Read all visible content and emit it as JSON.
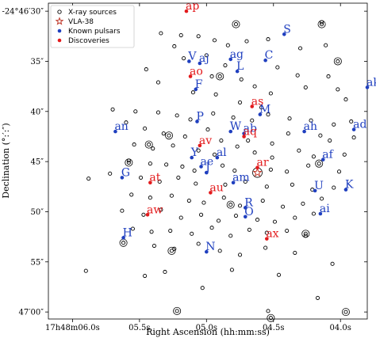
{
  "chart_data": {
    "type": "scatter",
    "xlabel": "Right Ascension (hh:mm:ss)",
    "ylabel": "Declination (°:′:″)",
    "x_ticks": [
      {
        "label": "17h48m06.0s",
        "value": 6.0
      },
      {
        "label": "05.5s",
        "value": 5.5
      },
      {
        "label": "05.0s",
        "value": 5.0
      },
      {
        "label": "04.5s",
        "value": 4.5
      },
      {
        "label": "04.0s",
        "value": 4.0
      }
    ],
    "y_ticks": [
      {
        "label": "-24°46′30″",
        "value": 30
      },
      {
        "label": "35″",
        "value": 35
      },
      {
        "label": "40″",
        "value": 40
      },
      {
        "label": "45″",
        "value": 45
      },
      {
        "label": "50″",
        "value": 50
      },
      {
        "label": "55″",
        "value": 55
      },
      {
        "label": "47′00″",
        "value": 60
      }
    ],
    "xlim": [
      6.18,
      3.8
    ],
    "ylim": [
      29.2,
      60.7
    ],
    "legend": {
      "position": "top-left",
      "entries": [
        {
          "label": "X-ray sources",
          "marker": "open-circle",
          "color": "#000000"
        },
        {
          "label": "VLA-38",
          "marker": "star",
          "color": "#c0392b"
        },
        {
          "label": "Known pulsars",
          "marker": "dot",
          "color": "#1f3fbf"
        },
        {
          "label": "Discoveries",
          "marker": "dot",
          "color": "#e31a1c"
        }
      ]
    },
    "colors": {
      "pulsar": "#1f3fbf",
      "discovery": "#e31a1c",
      "xray": "#000000",
      "vla": "#c0392b"
    },
    "vla38": {
      "x": 4.62,
      "y": 46.1
    },
    "known_pulsars": [
      {
        "name": "S",
        "x": 4.42,
        "y": 32.3
      },
      {
        "name": "V",
        "x": 5.13,
        "y": 35.0
      },
      {
        "name": "aj",
        "x": 5.05,
        "y": 35.2
      },
      {
        "name": "ag",
        "x": 4.82,
        "y": 34.8
      },
      {
        "name": "C",
        "x": 4.56,
        "y": 34.9
      },
      {
        "name": "L",
        "x": 4.77,
        "y": 36.0
      },
      {
        "name": "ak",
        "x": 3.8,
        "y": 37.6
      },
      {
        "name": "F",
        "x": 5.08,
        "y": 37.8
      },
      {
        "name": "M",
        "x": 4.6,
        "y": 40.3
      },
      {
        "name": "P",
        "x": 5.07,
        "y": 41.0
      },
      {
        "name": "W",
        "x": 4.82,
        "y": 42.0
      },
      {
        "name": "ab",
        "x": 4.72,
        "y": 42.2
      },
      {
        "name": "an",
        "x": 5.68,
        "y": 42.0
      },
      {
        "name": "ah",
        "x": 4.27,
        "y": 42.0
      },
      {
        "name": "ad",
        "x": 3.9,
        "y": 41.8
      },
      {
        "name": "Y",
        "x": 5.11,
        "y": 44.6
      },
      {
        "name": "al",
        "x": 4.92,
        "y": 44.6
      },
      {
        "name": "af",
        "x": 4.13,
        "y": 44.8
      },
      {
        "name": "ae",
        "x": 5.04,
        "y": 45.5
      },
      {
        "name": "J",
        "x": 5.0,
        "y": 46.1
      },
      {
        "name": "am",
        "x": 4.8,
        "y": 47.1
      },
      {
        "name": "G",
        "x": 5.63,
        "y": 46.6
      },
      {
        "name": "U",
        "x": 4.19,
        "y": 47.9
      },
      {
        "name": "K",
        "x": 3.96,
        "y": 47.8
      },
      {
        "name": "R",
        "x": 4.71,
        "y": 49.6
      },
      {
        "name": "O",
        "x": 4.71,
        "y": 50.5
      },
      {
        "name": "ai",
        "x": 4.15,
        "y": 50.2
      },
      {
        "name": "H",
        "x": 5.62,
        "y": 52.6
      },
      {
        "name": "N",
        "x": 5.0,
        "y": 54.0
      }
    ],
    "discoveries": [
      {
        "name": "ap",
        "x": 5.15,
        "y": 30.0
      },
      {
        "name": "ao",
        "x": 5.12,
        "y": 36.5
      },
      {
        "name": "as",
        "x": 4.66,
        "y": 39.5
      },
      {
        "name": "aq",
        "x": 4.72,
        "y": 42.5
      },
      {
        "name": "av",
        "x": 5.05,
        "y": 43.4
      },
      {
        "name": "ar",
        "x": 4.62,
        "y": 45.6
      },
      {
        "name": "at",
        "x": 5.42,
        "y": 47.1
      },
      {
        "name": "au",
        "x": 4.97,
        "y": 48.1
      },
      {
        "name": "aw",
        "x": 5.44,
        "y": 50.3
      },
      {
        "name": "ax",
        "x": 4.55,
        "y": 52.7
      }
    ],
    "xray_sources": [
      {
        "x": 5.6,
        "y": 30.5
      },
      {
        "x": 5.34,
        "y": 32.2
      },
      {
        "x": 5.24,
        "y": 33.5
      },
      {
        "x": 5.19,
        "y": 32.4
      },
      {
        "x": 5.06,
        "y": 32.5
      },
      {
        "x": 4.94,
        "y": 32.9
      },
      {
        "x": 4.84,
        "y": 33.4
      },
      {
        "x": 4.7,
        "y": 33.0
      },
      {
        "x": 4.54,
        "y": 32.8
      },
      {
        "x": 4.3,
        "y": 33.7
      },
      {
        "x": 4.14,
        "y": 31.1
      },
      {
        "x": 4.11,
        "y": 33.4
      },
      {
        "x": 4.47,
        "y": 35.6
      },
      {
        "x": 4.32,
        "y": 36.4
      },
      {
        "x": 4.09,
        "y": 36.5
      },
      {
        "x": 4.96,
        "y": 36.5
      },
      {
        "x": 5.45,
        "y": 35.8
      },
      {
        "x": 5.36,
        "y": 37.1
      },
      {
        "x": 5.17,
        "y": 34.7
      },
      {
        "x": 5.0,
        "y": 34.4
      },
      {
        "x": 4.86,
        "y": 35.4
      },
      {
        "x": 4.74,
        "y": 36.8
      },
      {
        "x": 4.64,
        "y": 37.5
      },
      {
        "x": 4.52,
        "y": 38.2
      },
      {
        "x": 4.26,
        "y": 37.6
      },
      {
        "x": 4.02,
        "y": 37.8
      },
      {
        "x": 3.96,
        "y": 38.8
      },
      {
        "x": 5.1,
        "y": 38.1
      },
      {
        "x": 4.93,
        "y": 38.3
      },
      {
        "x": 4.75,
        "y": 39.1
      },
      {
        "x": 4.59,
        "y": 39.6
      },
      {
        "x": 5.7,
        "y": 39.8
      },
      {
        "x": 5.53,
        "y": 40.0
      },
      {
        "x": 5.36,
        "y": 40.1
      },
      {
        "x": 5.22,
        "y": 40.4
      },
      {
        "x": 5.12,
        "y": 40.8
      },
      {
        "x": 4.95,
        "y": 40.2
      },
      {
        "x": 4.8,
        "y": 40.6
      },
      {
        "x": 4.66,
        "y": 40.9
      },
      {
        "x": 4.54,
        "y": 40.3
      },
      {
        "x": 4.38,
        "y": 40.7
      },
      {
        "x": 4.22,
        "y": 40.9
      },
      {
        "x": 4.05,
        "y": 41.3
      },
      {
        "x": 3.92,
        "y": 41.0
      },
      {
        "x": 5.6,
        "y": 41.1
      },
      {
        "x": 5.46,
        "y": 41.7
      },
      {
        "x": 5.32,
        "y": 42.2
      },
      {
        "x": 5.16,
        "y": 42.5
      },
      {
        "x": 4.99,
        "y": 41.8
      },
      {
        "x": 4.89,
        "y": 42.9
      },
      {
        "x": 4.69,
        "y": 42.9
      },
      {
        "x": 4.51,
        "y": 43.2
      },
      {
        "x": 4.39,
        "y": 42.2
      },
      {
        "x": 4.15,
        "y": 42.4
      },
      {
        "x": 4.08,
        "y": 42.9
      },
      {
        "x": 3.9,
        "y": 42.6
      },
      {
        "x": 5.54,
        "y": 43.3
      },
      {
        "x": 5.4,
        "y": 43.7
      },
      {
        "x": 5.25,
        "y": 43.4
      },
      {
        "x": 5.06,
        "y": 43.9
      },
      {
        "x": 4.94,
        "y": 44.3
      },
      {
        "x": 4.77,
        "y": 43.5
      },
      {
        "x": 4.64,
        "y": 44.1
      },
      {
        "x": 4.51,
        "y": 44.6
      },
      {
        "x": 4.31,
        "y": 43.9
      },
      {
        "x": 4.2,
        "y": 44.5
      },
      {
        "x": 3.97,
        "y": 44.3
      },
      {
        "x": 5.58,
        "y": 44.9
      },
      {
        "x": 5.42,
        "y": 45.2
      },
      {
        "x": 5.3,
        "y": 45.3
      },
      {
        "x": 5.18,
        "y": 45.5
      },
      {
        "x": 5.09,
        "y": 45.9
      },
      {
        "x": 4.88,
        "y": 45.4
      },
      {
        "x": 4.79,
        "y": 45.9
      },
      {
        "x": 4.52,
        "y": 45.8
      },
      {
        "x": 4.4,
        "y": 46.0
      },
      {
        "x": 4.24,
        "y": 45.4
      },
      {
        "x": 4.01,
        "y": 46.0
      },
      {
        "x": 5.88,
        "y": 46.7
      },
      {
        "x": 5.72,
        "y": 46.2
      },
      {
        "x": 5.49,
        "y": 46.6
      },
      {
        "x": 5.35,
        "y": 47.0
      },
      {
        "x": 5.21,
        "y": 46.6
      },
      {
        "x": 5.08,
        "y": 47.2
      },
      {
        "x": 4.86,
        "y": 47.3
      },
      {
        "x": 4.71,
        "y": 47.0
      },
      {
        "x": 4.55,
        "y": 47.5
      },
      {
        "x": 4.36,
        "y": 47.3
      },
      {
        "x": 4.21,
        "y": 47.8
      },
      {
        "x": 4.05,
        "y": 47.6
      },
      {
        "x": 5.56,
        "y": 48.3
      },
      {
        "x": 5.42,
        "y": 48.6
      },
      {
        "x": 5.26,
        "y": 48.4
      },
      {
        "x": 5.13,
        "y": 48.9
      },
      {
        "x": 5.02,
        "y": 49.1
      },
      {
        "x": 4.87,
        "y": 48.6
      },
      {
        "x": 4.75,
        "y": 49.4
      },
      {
        "x": 4.58,
        "y": 48.9
      },
      {
        "x": 4.43,
        "y": 49.5
      },
      {
        "x": 4.28,
        "y": 49.2
      },
      {
        "x": 4.14,
        "y": 48.7
      },
      {
        "x": 5.63,
        "y": 49.9
      },
      {
        "x": 5.47,
        "y": 50.3
      },
      {
        "x": 5.34,
        "y": 49.8
      },
      {
        "x": 5.19,
        "y": 50.6
      },
      {
        "x": 5.04,
        "y": 50.3
      },
      {
        "x": 4.91,
        "y": 50.9
      },
      {
        "x": 4.78,
        "y": 50.4
      },
      {
        "x": 4.62,
        "y": 50.8
      },
      {
        "x": 4.49,
        "y": 51.0
      },
      {
        "x": 4.34,
        "y": 50.6
      },
      {
        "x": 4.2,
        "y": 50.2
      },
      {
        "x": 5.55,
        "y": 51.7
      },
      {
        "x": 5.41,
        "y": 52.0
      },
      {
        "x": 5.27,
        "y": 51.9
      },
      {
        "x": 5.11,
        "y": 52.2
      },
      {
        "x": 4.96,
        "y": 51.6
      },
      {
        "x": 4.82,
        "y": 52.4
      },
      {
        "x": 4.68,
        "y": 51.8
      },
      {
        "x": 4.55,
        "y": 52.1
      },
      {
        "x": 4.4,
        "y": 51.9
      },
      {
        "x": 4.26,
        "y": 52.4
      },
      {
        "x": 5.39,
        "y": 53.4
      },
      {
        "x": 5.24,
        "y": 53.7
      },
      {
        "x": 5.06,
        "y": 53.2
      },
      {
        "x": 4.9,
        "y": 53.9
      },
      {
        "x": 4.75,
        "y": 54.3
      },
      {
        "x": 4.56,
        "y": 53.6
      },
      {
        "x": 4.34,
        "y": 54.1
      },
      {
        "x": 5.9,
        "y": 55.9
      },
      {
        "x": 5.46,
        "y": 56.4
      },
      {
        "x": 5.31,
        "y": 56.0
      },
      {
        "x": 4.81,
        "y": 55.8
      },
      {
        "x": 4.46,
        "y": 56.3
      },
      {
        "x": 5.03,
        "y": 57.6
      },
      {
        "x": 4.17,
        "y": 58.6
      },
      {
        "x": 4.54,
        "y": 59.9
      },
      {
        "x": 4.06,
        "y": 55.2
      }
    ],
    "xray_circled": [
      {
        "x": 4.78,
        "y": 31.3
      },
      {
        "x": 4.9,
        "y": 36.5
      },
      {
        "x": 4.02,
        "y": 35.0
      },
      {
        "x": 4.14,
        "y": 31.3
      },
      {
        "x": 5.43,
        "y": 43.3
      },
      {
        "x": 5.28,
        "y": 42.4
      },
      {
        "x": 5.58,
        "y": 45.1
      },
      {
        "x": 4.16,
        "y": 45.2
      },
      {
        "x": 4.82,
        "y": 49.3
      },
      {
        "x": 4.26,
        "y": 52.2
      },
      {
        "x": 5.62,
        "y": 53.1
      },
      {
        "x": 5.22,
        "y": 59.9
      },
      {
        "x": 4.52,
        "y": 60.6
      },
      {
        "x": 3.96,
        "y": 60.0
      },
      {
        "x": 5.26,
        "y": 53.9
      }
    ]
  }
}
